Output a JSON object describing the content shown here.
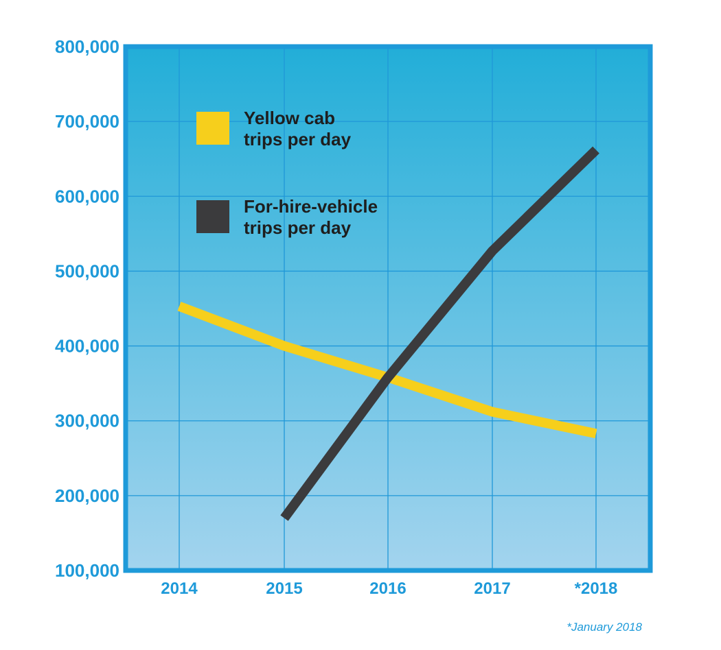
{
  "chart_data": {
    "type": "line",
    "categories": [
      "2014",
      "2015",
      "2016",
      "2017",
      "*2018"
    ],
    "series": [
      {
        "name": "Yellow cab trips per day",
        "name_lines": [
          "Yellow cab",
          "trips per day"
        ],
        "color": "#f6cf1c",
        "values": [
          453000,
          400000,
          358000,
          312000,
          283000
        ]
      },
      {
        "name": "For-hire-vehicle trips per day",
        "name_lines": [
          "For-hire-vehicle",
          "trips per day"
        ],
        "color": "#3b3b3d",
        "values": [
          null,
          170000,
          358000,
          527000,
          662000
        ]
      }
    ],
    "ylim": [
      100000,
      800000
    ],
    "yticks": [
      "100,000",
      "200,000",
      "300,000",
      "400,000",
      "500,000",
      "600,000",
      "700,000",
      "800,000"
    ],
    "ytick_values": [
      100000,
      200000,
      300000,
      400000,
      500000,
      600000,
      700000,
      800000
    ],
    "grid": true,
    "legend": "top-left",
    "footnote": "*January 2018",
    "colors": {
      "frame": "#1e9ad9",
      "tick_text": "#1e9ad9",
      "bg_top": "#22aed8",
      "bg_bottom": "#a3d4ee",
      "grid": "#1f97d8",
      "legend_text": "#1e1e1e"
    }
  }
}
